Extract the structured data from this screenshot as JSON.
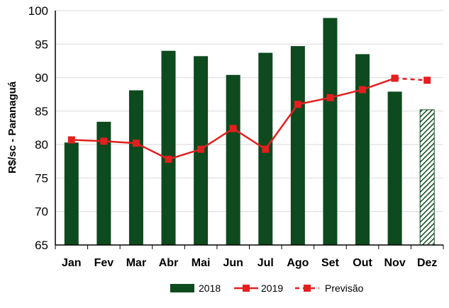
{
  "chart_data": {
    "type": "bar",
    "ylabel": "R$/sc - Paranaguá",
    "ylim": [
      65,
      100
    ],
    "yticks": [
      65,
      70,
      75,
      80,
      85,
      90,
      95,
      100
    ],
    "categories": [
      "Jan",
      "Fev",
      "Mar",
      "Abr",
      "Mai",
      "Jun",
      "Jul",
      "Ago",
      "Set",
      "Out",
      "Nov",
      "Dez"
    ],
    "grid": true,
    "legend_position": "bottom",
    "series": [
      {
        "name": "2018",
        "kind": "bar",
        "color": "#0d4a1e",
        "values": [
          80.3,
          83.4,
          88.1,
          94.0,
          93.2,
          90.4,
          93.7,
          94.7,
          98.9,
          93.5,
          87.9,
          85.2
        ],
        "hatched_last": true
      },
      {
        "name": "2019",
        "kind": "line",
        "color": "#e31f1f",
        "values": [
          80.7,
          80.5,
          80.2,
          77.8,
          79.3,
          82.4,
          79.3,
          86.0,
          87.0,
          88.2,
          89.9,
          null
        ]
      },
      {
        "name": "Previsão",
        "kind": "line-dashed",
        "color": "#e31f1f",
        "values": [
          null,
          null,
          null,
          null,
          null,
          null,
          null,
          null,
          null,
          null,
          89.9,
          89.6
        ]
      }
    ]
  }
}
